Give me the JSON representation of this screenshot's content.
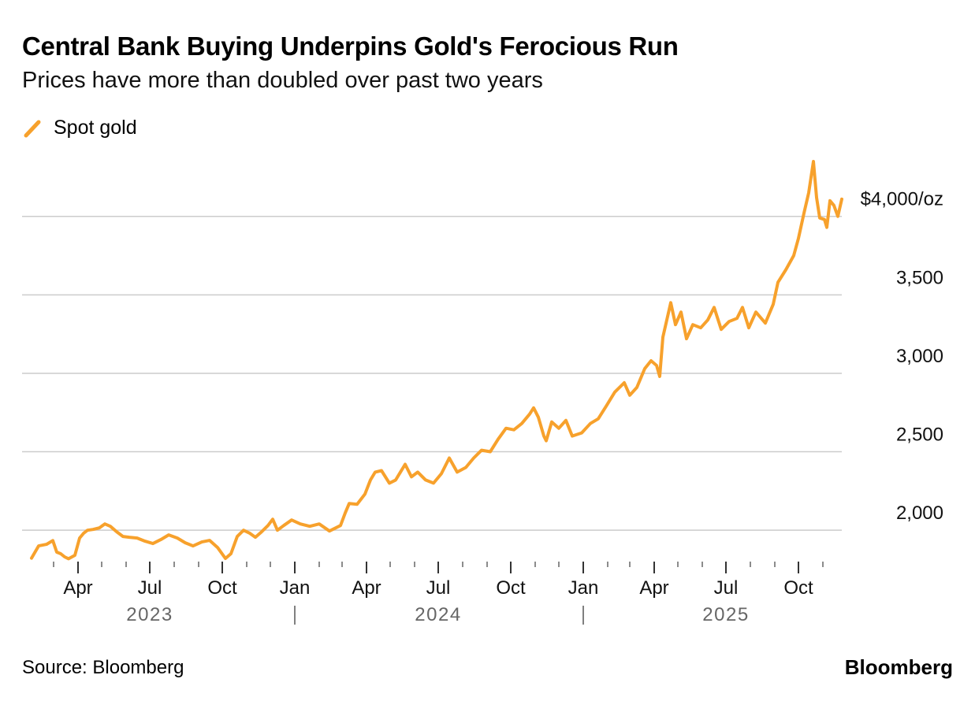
{
  "header": {
    "title": "Central Bank Buying Underpins Gold's Ferocious Run",
    "subtitle": "Prices have more than doubled over past two years"
  },
  "legend": {
    "label": "Spot gold",
    "color": "#f7a12c"
  },
  "footer": {
    "source": "Source: Bloomberg",
    "brand": "Bloomberg"
  },
  "chart_data": {
    "type": "line",
    "title": "Central Bank Buying Underpins Gold's Ferocious Run",
    "subtitle": "Prices have more than doubled over past two years",
    "xlabel": "",
    "ylabel": "",
    "y_unit": "$/oz",
    "ylim": [
      1800,
      4350
    ],
    "xlim": [
      "2023-02-01",
      "2025-11-25"
    ],
    "grid": true,
    "legend_position": "top-left",
    "line_color": "#f7a12c",
    "y_ticks": [
      {
        "value": 2000,
        "label": "2,000"
      },
      {
        "value": 2500,
        "label": "2,500"
      },
      {
        "value": 3000,
        "label": "3,000"
      },
      {
        "value": 3500,
        "label": "3,500"
      },
      {
        "value": 4000,
        "label": "$4,000/oz"
      }
    ],
    "x_ticks": [
      {
        "date": "2023-04-01",
        "label": "Apr"
      },
      {
        "date": "2023-07-01",
        "label": "Jul"
      },
      {
        "date": "2023-10-01",
        "label": "Oct"
      },
      {
        "date": "2024-01-01",
        "label": "Jan"
      },
      {
        "date": "2024-04-01",
        "label": "Apr"
      },
      {
        "date": "2024-07-01",
        "label": "Jul"
      },
      {
        "date": "2024-10-01",
        "label": "Oct"
      },
      {
        "date": "2025-01-01",
        "label": "Jan"
      },
      {
        "date": "2025-04-01",
        "label": "Apr"
      },
      {
        "date": "2025-07-01",
        "label": "Jul"
      },
      {
        "date": "2025-10-01",
        "label": "Oct"
      }
    ],
    "minor_ticks": [
      "2023-03-01",
      "2023-05-01",
      "2023-06-01",
      "2023-08-01",
      "2023-09-01",
      "2023-11-01",
      "2023-12-01",
      "2024-02-01",
      "2024-03-01",
      "2024-05-01",
      "2024-06-01",
      "2024-08-01",
      "2024-09-01",
      "2024-11-01",
      "2024-12-01",
      "2025-02-01",
      "2025-03-01",
      "2025-05-01",
      "2025-06-01",
      "2025-08-01",
      "2025-09-01",
      "2025-11-01"
    ],
    "year_labels": [
      {
        "date": "2023-07-01",
        "label": "2023"
      },
      {
        "date": "2024-07-01",
        "label": "2024"
      },
      {
        "date": "2025-07-01",
        "label": "2025"
      }
    ],
    "year_separators": [
      "2024-01-01",
      "2025-01-01"
    ],
    "series": [
      {
        "name": "Spot gold",
        "points": [
          [
            "2023-02-01",
            1822
          ],
          [
            "2023-02-10",
            1900
          ],
          [
            "2023-02-20",
            1910
          ],
          [
            "2023-02-28",
            1934
          ],
          [
            "2023-03-05",
            1860
          ],
          [
            "2023-03-10",
            1850
          ],
          [
            "2023-03-15",
            1830
          ],
          [
            "2023-03-20",
            1818
          ],
          [
            "2023-03-28",
            1840
          ],
          [
            "2023-04-03",
            1950
          ],
          [
            "2023-04-08",
            1980
          ],
          [
            "2023-04-13",
            2000
          ],
          [
            "2023-04-20",
            2005
          ],
          [
            "2023-04-28",
            2015
          ],
          [
            "2023-05-05",
            2040
          ],
          [
            "2023-05-12",
            2025
          ],
          [
            "2023-05-20",
            1990
          ],
          [
            "2023-05-28",
            1960
          ],
          [
            "2023-06-05",
            1955
          ],
          [
            "2023-06-15",
            1950
          ],
          [
            "2023-06-25",
            1930
          ],
          [
            "2023-07-05",
            1915
          ],
          [
            "2023-07-15",
            1940
          ],
          [
            "2023-07-25",
            1970
          ],
          [
            "2023-08-05",
            1950
          ],
          [
            "2023-08-15",
            1920
          ],
          [
            "2023-08-25",
            1900
          ],
          [
            "2023-09-05",
            1925
          ],
          [
            "2023-09-15",
            1935
          ],
          [
            "2023-09-25",
            1890
          ],
          [
            "2023-10-05",
            1820
          ],
          [
            "2023-10-12",
            1850
          ],
          [
            "2023-10-20",
            1960
          ],
          [
            "2023-10-28",
            2000
          ],
          [
            "2023-11-05",
            1980
          ],
          [
            "2023-11-12",
            1955
          ],
          [
            "2023-11-20",
            1990
          ],
          [
            "2023-11-28",
            2030
          ],
          [
            "2023-12-04",
            2070
          ],
          [
            "2023-12-10",
            2000
          ],
          [
            "2023-12-18",
            2030
          ],
          [
            "2023-12-28",
            2065
          ],
          [
            "2024-01-08",
            2040
          ],
          [
            "2024-01-20",
            2025
          ],
          [
            "2024-02-01",
            2040
          ],
          [
            "2024-02-14",
            1995
          ],
          [
            "2024-02-28",
            2030
          ],
          [
            "2024-03-05",
            2110
          ],
          [
            "2024-03-10",
            2170
          ],
          [
            "2024-03-20",
            2165
          ],
          [
            "2024-03-30",
            2230
          ],
          [
            "2024-04-06",
            2320
          ],
          [
            "2024-04-12",
            2370
          ],
          [
            "2024-04-20",
            2380
          ],
          [
            "2024-04-30",
            2300
          ],
          [
            "2024-05-08",
            2320
          ],
          [
            "2024-05-20",
            2420
          ],
          [
            "2024-05-28",
            2340
          ],
          [
            "2024-06-05",
            2370
          ],
          [
            "2024-06-15",
            2320
          ],
          [
            "2024-06-25",
            2300
          ],
          [
            "2024-07-05",
            2360
          ],
          [
            "2024-07-15",
            2460
          ],
          [
            "2024-07-25",
            2370
          ],
          [
            "2024-08-05",
            2400
          ],
          [
            "2024-08-15",
            2460
          ],
          [
            "2024-08-25",
            2510
          ],
          [
            "2024-09-05",
            2500
          ],
          [
            "2024-09-15",
            2580
          ],
          [
            "2024-09-25",
            2650
          ],
          [
            "2024-10-05",
            2640
          ],
          [
            "2024-10-15",
            2680
          ],
          [
            "2024-10-25",
            2740
          ],
          [
            "2024-10-30",
            2780
          ],
          [
            "2024-11-05",
            2720
          ],
          [
            "2024-11-12",
            2600
          ],
          [
            "2024-11-15",
            2570
          ],
          [
            "2024-11-22",
            2690
          ],
          [
            "2024-12-01",
            2650
          ],
          [
            "2024-12-10",
            2700
          ],
          [
            "2024-12-18",
            2600
          ],
          [
            "2024-12-30",
            2620
          ],
          [
            "2025-01-10",
            2680
          ],
          [
            "2025-01-20",
            2710
          ],
          [
            "2025-01-30",
            2790
          ],
          [
            "2025-02-10",
            2880
          ],
          [
            "2025-02-22",
            2940
          ],
          [
            "2025-03-01",
            2860
          ],
          [
            "2025-03-10",
            2910
          ],
          [
            "2025-03-20",
            3030
          ],
          [
            "2025-03-28",
            3080
          ],
          [
            "2025-04-04",
            3050
          ],
          [
            "2025-04-08",
            2980
          ],
          [
            "2025-04-12",
            3230
          ],
          [
            "2025-04-17",
            3340
          ],
          [
            "2025-04-22",
            3450
          ],
          [
            "2025-04-28",
            3310
          ],
          [
            "2025-05-05",
            3390
          ],
          [
            "2025-05-12",
            3220
          ],
          [
            "2025-05-20",
            3310
          ],
          [
            "2025-05-30",
            3290
          ],
          [
            "2025-06-08",
            3340
          ],
          [
            "2025-06-16",
            3420
          ],
          [
            "2025-06-25",
            3280
          ],
          [
            "2025-07-05",
            3330
          ],
          [
            "2025-07-15",
            3350
          ],
          [
            "2025-07-22",
            3420
          ],
          [
            "2025-07-30",
            3290
          ],
          [
            "2025-08-08",
            3390
          ],
          [
            "2025-08-20",
            3320
          ],
          [
            "2025-08-30",
            3440
          ],
          [
            "2025-09-05",
            3580
          ],
          [
            "2025-09-15",
            3660
          ],
          [
            "2025-09-25",
            3750
          ],
          [
            "2025-10-01",
            3860
          ],
          [
            "2025-10-08",
            4020
          ],
          [
            "2025-10-14",
            4150
          ],
          [
            "2025-10-20",
            4350
          ],
          [
            "2025-10-24",
            4120
          ],
          [
            "2025-10-28",
            3990
          ],
          [
            "2025-11-03",
            3980
          ],
          [
            "2025-11-06",
            3930
          ],
          [
            "2025-11-10",
            4100
          ],
          [
            "2025-11-15",
            4070
          ],
          [
            "2025-11-20",
            4000
          ],
          [
            "2025-11-25",
            4110
          ]
        ]
      }
    ]
  }
}
